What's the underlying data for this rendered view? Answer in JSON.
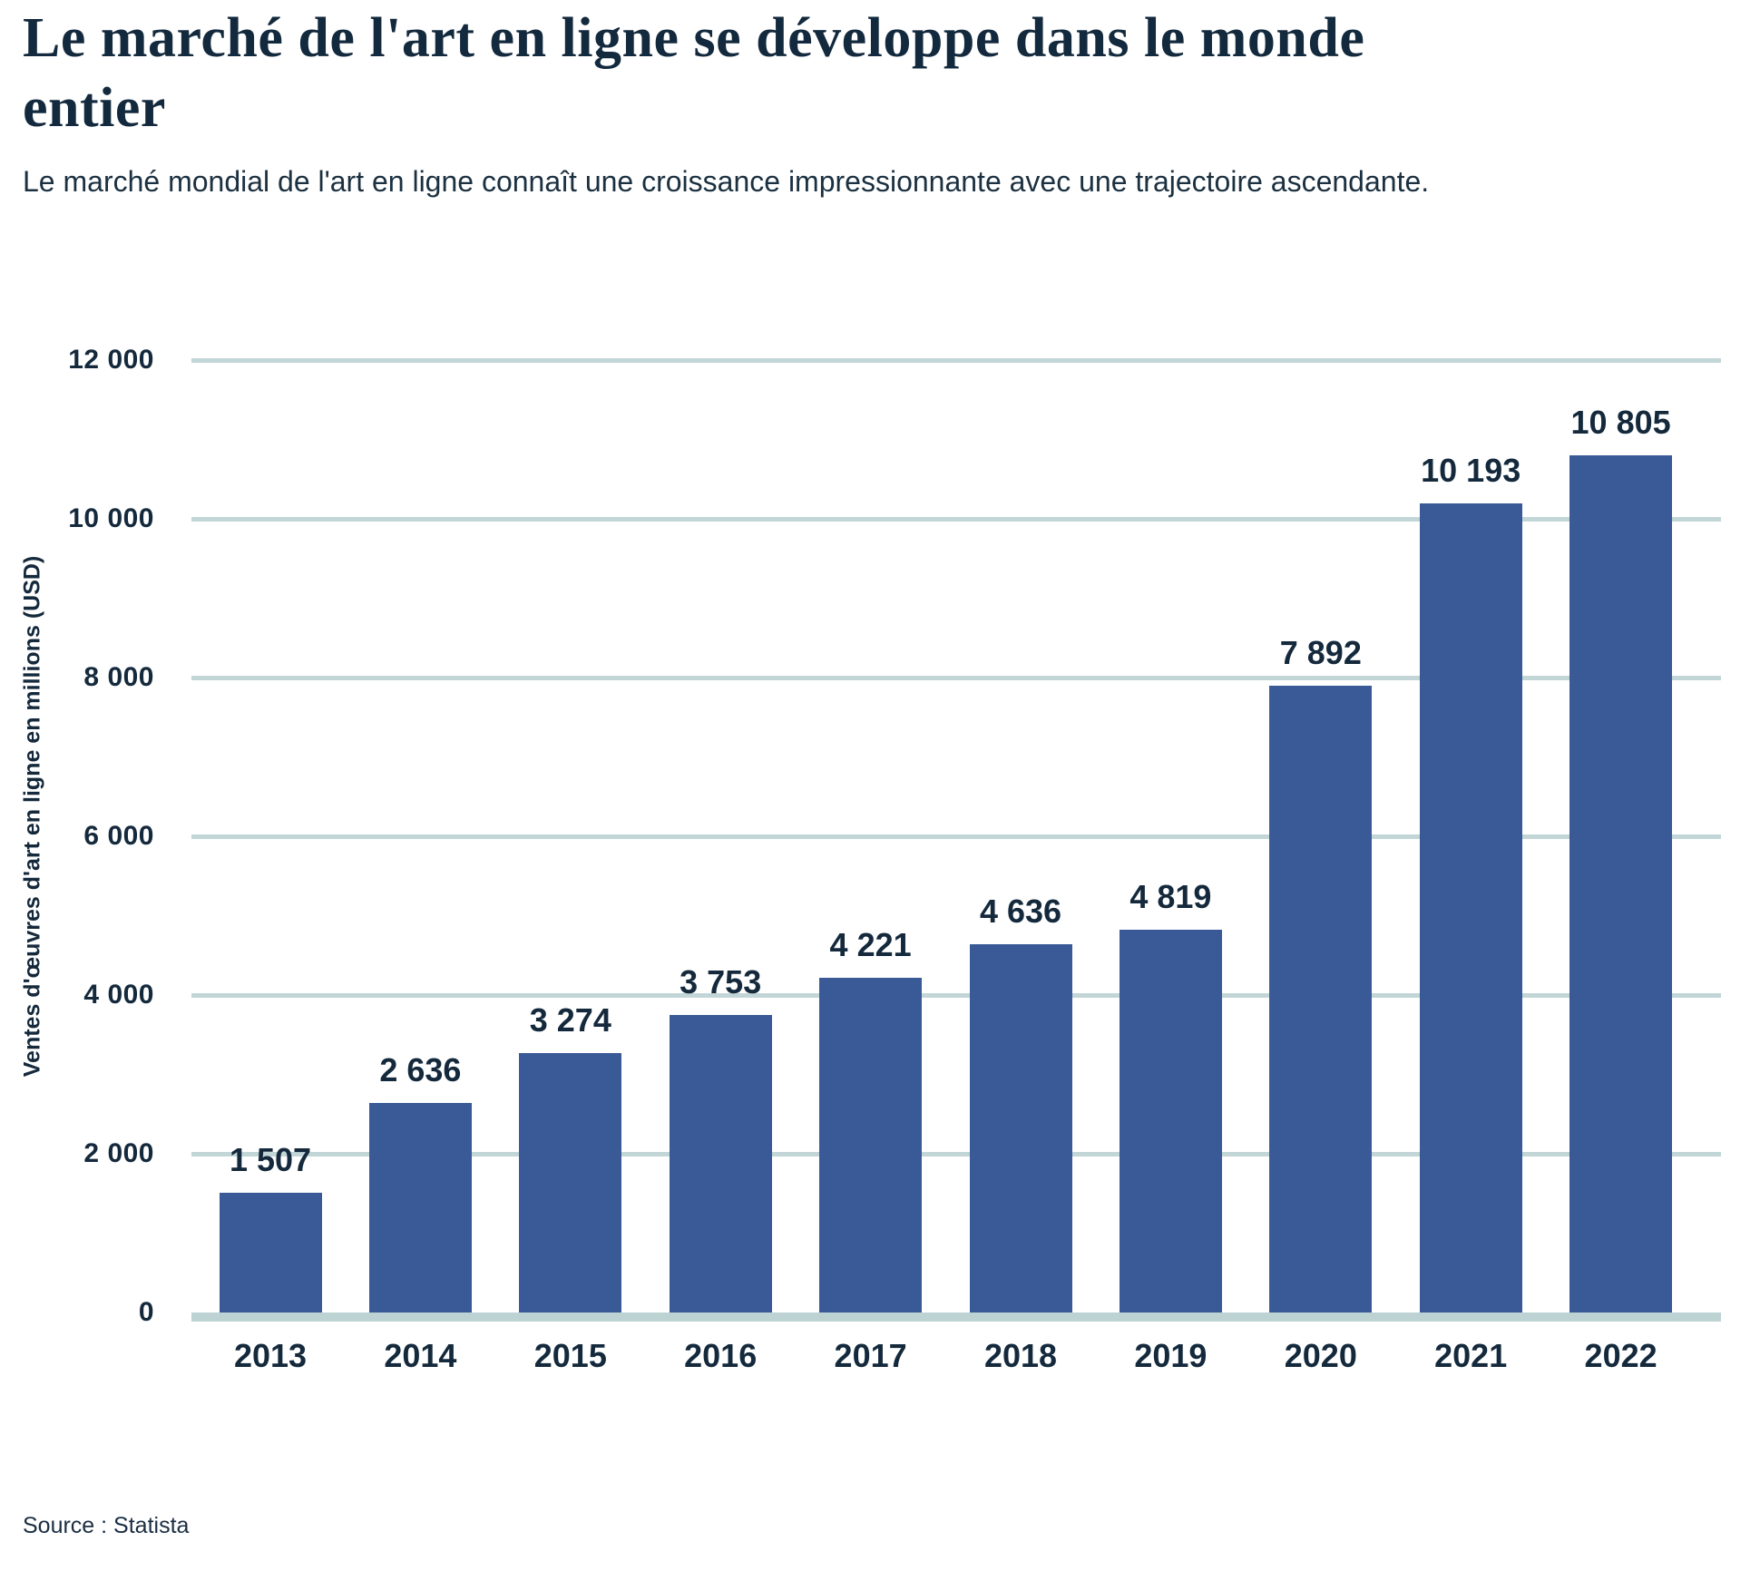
{
  "header": {
    "title_lines": [
      "Le marché de l'art en ligne se développe dans le monde",
      "entier"
    ],
    "subtitle": "Le marché mondial de l'art en ligne connaît une croissance impressionnante avec une trajectoire ascendante."
  },
  "source": "Source : Statista",
  "chart_data": {
    "type": "bar",
    "categories": [
      "2013",
      "2014",
      "2015",
      "2016",
      "2017",
      "2018",
      "2019",
      "2020",
      "2021",
      "2022"
    ],
    "values": [
      1507,
      2636,
      3274,
      3753,
      4221,
      4636,
      4819,
      7892,
      10193,
      10805
    ],
    "value_labels": [
      "1 507",
      "2 636",
      "3 274",
      "3 753",
      "4 221",
      "4 636",
      "4 819",
      "7 892",
      "10 193",
      "10 805"
    ],
    "title": "Le marché de l'art en ligne se développe dans le monde entier",
    "xlabel": "",
    "ylabel": "Ventes d'œuvres d'art en ligne en millions (USD)",
    "ylim": [
      0,
      12000
    ],
    "yticks": [
      0,
      2000,
      4000,
      6000,
      8000,
      10000,
      12000
    ],
    "ytick_labels": [
      "0",
      "2 000",
      "4 000",
      "6 000",
      "8 000",
      "10 000",
      "12 000"
    ],
    "grid": true,
    "legend": "none",
    "colors": {
      "bar": "#3a5a97",
      "gridline": "#c3d6d7",
      "baseline": "#bcd2d3",
      "text": "#14293c"
    }
  }
}
